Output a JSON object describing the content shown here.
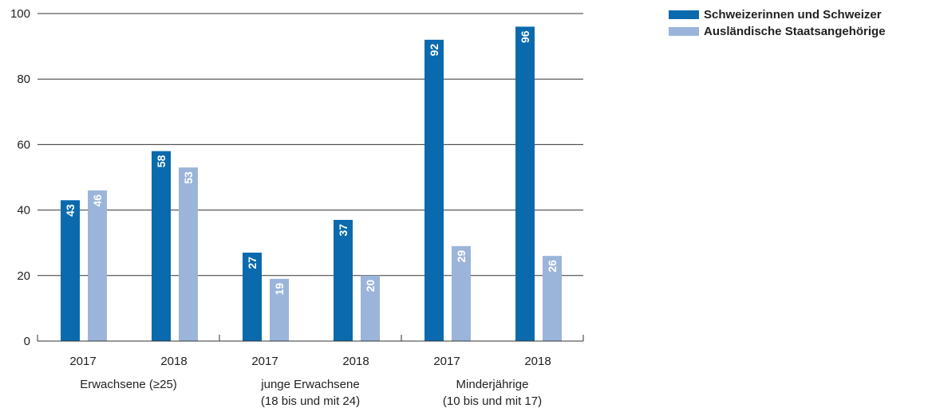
{
  "chart_data": {
    "type": "bar",
    "groups": [
      {
        "label_lines": [
          "Erwachsene (≥25)"
        ],
        "years": [
          "2017",
          "2018"
        ]
      },
      {
        "label_lines": [
          "junge Erwachsene",
          "(18 bis und mit 24)"
        ],
        "years": [
          "2017",
          "2018"
        ]
      },
      {
        "label_lines": [
          "Minderjährige",
          "(10 bis und mit 17)"
        ],
        "years": [
          "2017",
          "2018"
        ]
      }
    ],
    "categories": [
      "2017",
      "2018",
      "2017",
      "2018",
      "2017",
      "2018"
    ],
    "series": [
      {
        "name": "Schweizerinnen und Schweizer",
        "color": "#0a6aad",
        "values": [
          43,
          58,
          27,
          37,
          92,
          96
        ]
      },
      {
        "name": "Ausländische Staatsangehörige",
        "color": "#9bb5da",
        "values": [
          46,
          53,
          19,
          20,
          29,
          26
        ]
      }
    ],
    "yticks": [
      0,
      20,
      40,
      60,
      80,
      100
    ],
    "ylim": [
      0,
      100
    ],
    "grid": true,
    "legend_position": "top-right",
    "title": "",
    "xlabel": "",
    "ylabel": ""
  }
}
